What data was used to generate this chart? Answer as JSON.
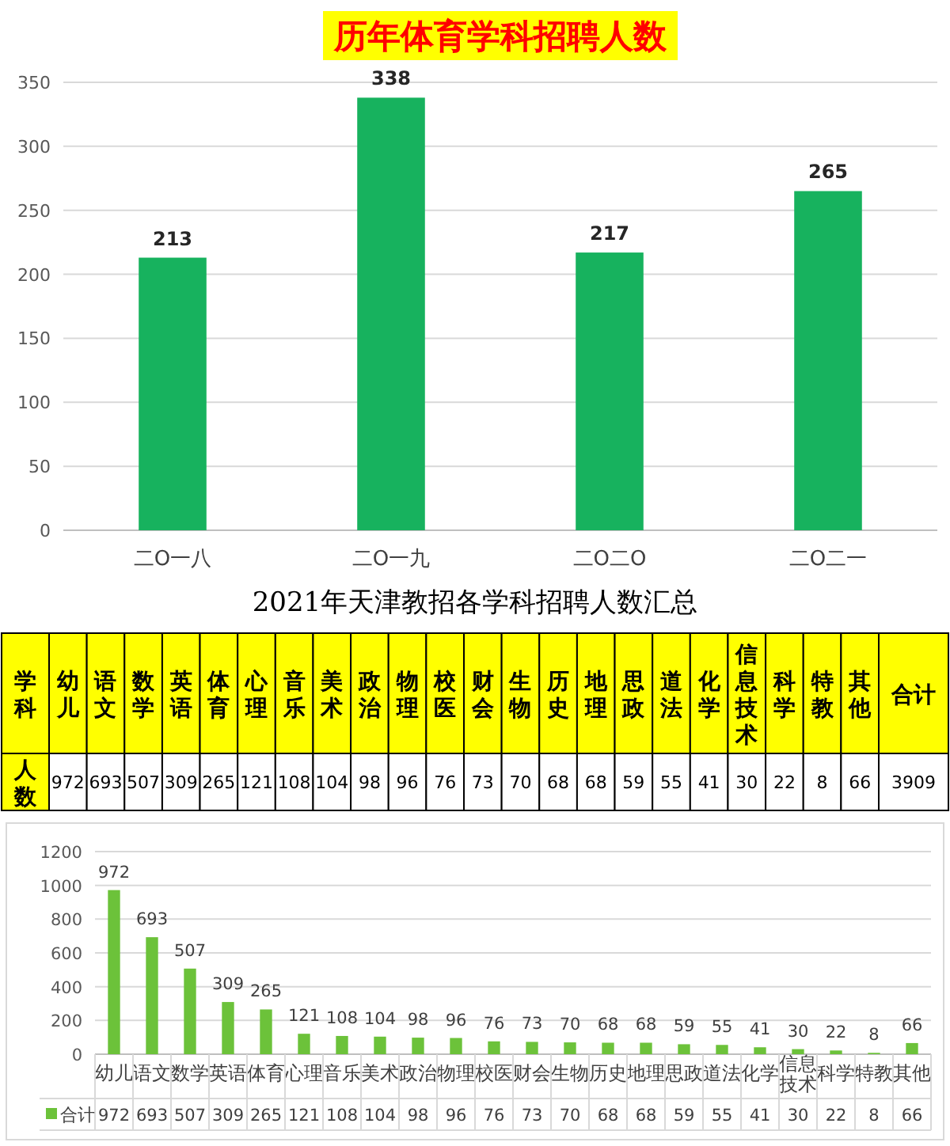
{
  "chart_data": [
    {
      "type": "bar",
      "title": "历年体育学科招聘人数",
      "categories": [
        "二O一八",
        "二O一九",
        "二O二O",
        "二O二一"
      ],
      "values": [
        213,
        338,
        217,
        265
      ],
      "color": "#17b25e",
      "ylim": [
        0,
        350
      ],
      "yticks": [
        0,
        50,
        100,
        150,
        200,
        250,
        300,
        350
      ],
      "grid": "y",
      "data_labels": true
    },
    {
      "type": "other",
      "title": "2021年天津教招各学科招聘人数汇总",
      "xlabel": "学科",
      "ylabel": "人数",
      "categories": [
        "幼儿",
        "语文",
        "数学",
        "英语",
        "体育",
        "心理",
        "音乐",
        "美术",
        "政治",
        "物理",
        "校医",
        "财会",
        "生物",
        "历史",
        "地理",
        "思政",
        "道法",
        "化学",
        "信息技术",
        "科学",
        "特教",
        "其他",
        "合计"
      ],
      "values": [
        972,
        693,
        507,
        309,
        265,
        121,
        108,
        104,
        98,
        96,
        76,
        73,
        70,
        68,
        68,
        59,
        55,
        41,
        30,
        22,
        8,
        66,
        3909
      ],
      "value_labels": [
        "972",
        "693",
        "507",
        "309",
        "265",
        "121",
        "108",
        "104",
        "98",
        "96",
        "76",
        "73",
        "70",
        "68",
        "68",
        "59",
        "55",
        "41",
        "30",
        "22",
        "8",
        "66",
        "3909"
      ]
    },
    {
      "type": "bar",
      "categories": [
        "幼儿",
        "语文",
        "数学",
        "英语",
        "体育",
        "心理",
        "音乐",
        "美术",
        "政治",
        "物理",
        "校医",
        "财会",
        "生物",
        "历史",
        "地理",
        "思政",
        "道法",
        "化学",
        "信息技术",
        "科学",
        "特教",
        "其他"
      ],
      "series": [
        {
          "name": "合计",
          "color": "#6cc23a",
          "values": [
            972,
            693,
            507,
            309,
            265,
            121,
            108,
            104,
            98,
            96,
            76,
            73,
            70,
            68,
            68,
            59,
            55,
            41,
            30,
            22,
            8,
            66
          ],
          "value_labels": [
            "972",
            "693",
            "507",
            "309",
            "265",
            "121",
            "108",
            "104",
            "98",
            "96",
            "76",
            "73",
            "70",
            "68",
            "68",
            "59",
            "55",
            "41",
            "30",
            "22",
            "8",
            "66"
          ]
        }
      ],
      "ylim": [
        0,
        1200
      ],
      "yticks": [
        0,
        200,
        400,
        600,
        800,
        1000,
        1200
      ],
      "grid": "y",
      "annotations": [
        "972",
        "693",
        "507",
        "309",
        "265",
        "121",
        "108",
        "104",
        "98",
        "96",
        "76",
        "73",
        "70",
        "68",
        "68",
        "59",
        "55",
        "41",
        "30",
        "22",
        "8",
        "66"
      ]
    }
  ]
}
